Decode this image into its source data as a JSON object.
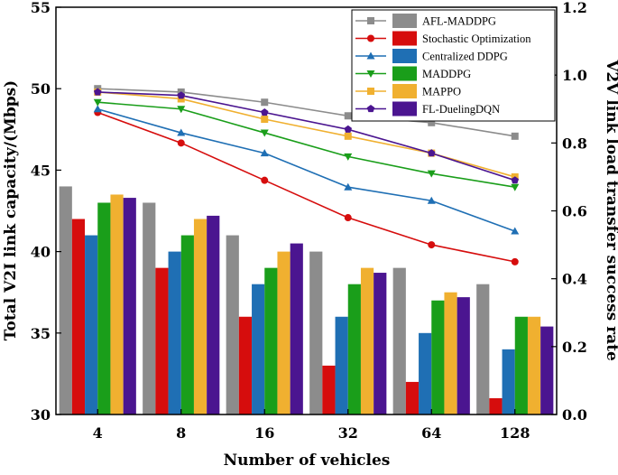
{
  "chart_data": {
    "type": "bar",
    "xlabel": "Number of vehicles",
    "ylabel": "Total V2I link capacity/(Mbps)",
    "y2label": "V2V link load transfer success rate",
    "categories": [
      "4",
      "8",
      "16",
      "32",
      "64",
      "128"
    ],
    "ylim": [
      30,
      55
    ],
    "yticks": [
      30,
      35,
      40,
      45,
      50,
      55
    ],
    "y2lim": [
      0.0,
      1.2
    ],
    "y2ticks": [
      "0.0",
      "0.2",
      "0.4",
      "0.6",
      "0.8",
      "1.0",
      "1.2"
    ],
    "grid": false,
    "legend_position": "top-right",
    "bar_series": [
      {
        "name": "AFL-MADDPG",
        "color": "#8c8c8c",
        "values": [
          44,
          43,
          41,
          40,
          39,
          38
        ]
      },
      {
        "name": "Stochastic Optimization",
        "color": "#d60d0d",
        "values": [
          42,
          39,
          36,
          33,
          32,
          31
        ]
      },
      {
        "name": "Centralized DDPG",
        "color": "#1f6fb4",
        "values": [
          41,
          40,
          38,
          36,
          35,
          34
        ]
      },
      {
        "name": "MADDPG",
        "color": "#1a9e1a",
        "values": [
          43,
          41,
          39,
          38,
          37,
          36
        ]
      },
      {
        "name": "MAPPO",
        "color": "#f0b030",
        "values": [
          43.5,
          42,
          40,
          39,
          37.5,
          36
        ]
      },
      {
        "name": "FL-DuelingDQN",
        "color": "#4b1590",
        "values": [
          43.3,
          42.2,
          40.5,
          38.7,
          37.2,
          35.4
        ]
      }
    ],
    "line_series": [
      {
        "name": "AFL-MADDPG",
        "color": "#8c8c8c",
        "marker": "square",
        "values": [
          0.96,
          0.95,
          0.92,
          0.88,
          0.86,
          0.82
        ]
      },
      {
        "name": "Stochastic Optimization",
        "color": "#d60d0d",
        "marker": "circle",
        "values": [
          0.89,
          0.8,
          0.69,
          0.58,
          0.5,
          0.45
        ]
      },
      {
        "name": "Centralized DDPG",
        "color": "#1f6fb4",
        "marker": "triangle-up",
        "values": [
          0.9,
          0.83,
          0.77,
          0.67,
          0.63,
          0.54
        ]
      },
      {
        "name": "MADDPG",
        "color": "#1a9e1a",
        "marker": "triangle-down",
        "values": [
          0.92,
          0.9,
          0.83,
          0.76,
          0.71,
          0.67
        ]
      },
      {
        "name": "MAPPO",
        "color": "#f0b030",
        "marker": "square",
        "values": [
          0.95,
          0.93,
          0.87,
          0.82,
          0.77,
          0.7
        ]
      },
      {
        "name": "FL-DuelingDQN",
        "color": "#4b1590",
        "marker": "pentagon",
        "values": [
          0.95,
          0.94,
          0.89,
          0.84,
          0.77,
          0.69
        ]
      }
    ]
  }
}
